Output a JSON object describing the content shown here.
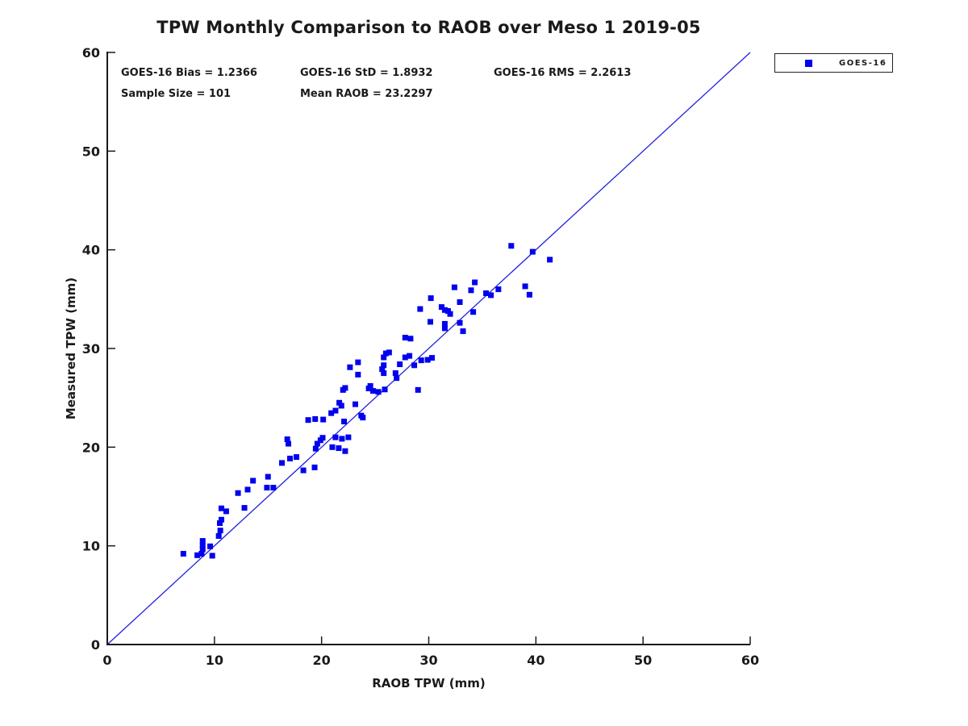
{
  "chart_data": {
    "type": "scatter",
    "title": "TPW Monthly Comparison to RAOB over Meso 1 2019-05",
    "xlabel": "RAOB TPW (mm)",
    "ylabel": "Measured TPW (mm)",
    "xlim": [
      0,
      60
    ],
    "ylim": [
      0,
      60
    ],
    "xticks": [
      0,
      10,
      20,
      30,
      40,
      50,
      60
    ],
    "yticks": [
      0,
      10,
      20,
      30,
      40,
      50,
      60
    ],
    "grid": false,
    "stats_annotations": [
      "GOES-16 Bias = 1.2366",
      "GOES-16 StD = 1.8932",
      "GOES-16 RMS = 2.2613",
      "Sample Size = 101",
      "Mean RAOB = 23.2297"
    ],
    "legend": {
      "position": "outside-top-right",
      "entries": [
        {
          "label": "GOES-16",
          "marker": "square",
          "color": "#0000EE"
        }
      ]
    },
    "reference_line": {
      "type": "identity",
      "x": [
        0,
        60
      ],
      "y": [
        0,
        60
      ],
      "color": "#2222DD"
    },
    "series": [
      {
        "name": "GOES-16",
        "marker": "square",
        "marker_size": 7,
        "color": "#0000EE",
        "points": [
          [
            7.1,
            9.2
          ],
          [
            8.4,
            9.05
          ],
          [
            8.8,
            9.2
          ],
          [
            8.9,
            9.65
          ],
          [
            8.9,
            10.05
          ],
          [
            8.9,
            10.5
          ],
          [
            9.6,
            9.95
          ],
          [
            9.8,
            9.0
          ],
          [
            10.4,
            11.0
          ],
          [
            10.55,
            11.55
          ],
          [
            10.5,
            12.3
          ],
          [
            10.65,
            12.65
          ],
          [
            10.65,
            13.8
          ],
          [
            11.1,
            13.5
          ],
          [
            12.2,
            15.35
          ],
          [
            12.8,
            13.85
          ],
          [
            13.1,
            15.7
          ],
          [
            13.6,
            16.6
          ],
          [
            14.9,
            15.9
          ],
          [
            15.0,
            17.0
          ],
          [
            15.5,
            15.9
          ],
          [
            16.3,
            18.4
          ],
          [
            16.8,
            20.8
          ],
          [
            16.9,
            20.35
          ],
          [
            17.05,
            18.85
          ],
          [
            17.65,
            19.0
          ],
          [
            18.3,
            17.65
          ],
          [
            19.35,
            17.95
          ],
          [
            19.45,
            19.85
          ],
          [
            19.6,
            20.35
          ],
          [
            19.9,
            20.7
          ],
          [
            20.1,
            20.95
          ],
          [
            18.75,
            22.75
          ],
          [
            19.4,
            22.85
          ],
          [
            20.15,
            22.8
          ],
          [
            20.9,
            23.45
          ],
          [
            21.3,
            23.7
          ],
          [
            21.0,
            20.0
          ],
          [
            21.3,
            21.0
          ],
          [
            21.9,
            20.85
          ],
          [
            22.5,
            21.0
          ],
          [
            21.6,
            19.9
          ],
          [
            22.2,
            19.6
          ],
          [
            21.65,
            24.5
          ],
          [
            21.85,
            24.2
          ],
          [
            22.1,
            22.6
          ],
          [
            23.15,
            24.35
          ],
          [
            23.7,
            23.2
          ],
          [
            22.0,
            25.8
          ],
          [
            22.2,
            26.0
          ],
          [
            22.65,
            28.1
          ],
          [
            23.4,
            28.6
          ],
          [
            23.4,
            27.35
          ],
          [
            23.85,
            23.0
          ],
          [
            24.4,
            25.95
          ],
          [
            24.55,
            26.2
          ],
          [
            24.8,
            25.7
          ],
          [
            25.3,
            25.6
          ],
          [
            25.9,
            25.85
          ],
          [
            25.65,
            27.9
          ],
          [
            25.8,
            27.5
          ],
          [
            25.8,
            28.3
          ],
          [
            25.8,
            29.1
          ],
          [
            26.0,
            29.5
          ],
          [
            26.3,
            29.6
          ],
          [
            26.9,
            27.5
          ],
          [
            27.0,
            27.0
          ],
          [
            27.3,
            28.4
          ],
          [
            27.8,
            29.1
          ],
          [
            28.2,
            29.25
          ],
          [
            28.65,
            28.3
          ],
          [
            29.3,
            28.8
          ],
          [
            29.9,
            28.85
          ],
          [
            30.3,
            29.05
          ],
          [
            29.0,
            25.8
          ],
          [
            27.8,
            31.1
          ],
          [
            28.3,
            31.0
          ],
          [
            29.2,
            34.0
          ],
          [
            30.2,
            35.1
          ],
          [
            30.15,
            32.7
          ],
          [
            31.2,
            34.2
          ],
          [
            31.5,
            33.9
          ],
          [
            31.8,
            33.8
          ],
          [
            32.0,
            33.5
          ],
          [
            31.5,
            32.5
          ],
          [
            31.5,
            32.05
          ],
          [
            32.9,
            32.6
          ],
          [
            33.2,
            31.75
          ],
          [
            32.4,
            36.2
          ],
          [
            32.9,
            34.7
          ],
          [
            33.95,
            35.9
          ],
          [
            34.3,
            36.7
          ],
          [
            34.15,
            33.7
          ],
          [
            35.35,
            35.6
          ],
          [
            35.8,
            35.4
          ],
          [
            36.5,
            36.0
          ],
          [
            39.0,
            36.3
          ],
          [
            39.4,
            35.45
          ],
          [
            37.7,
            40.4
          ],
          [
            39.7,
            39.8
          ],
          [
            41.3,
            39.0
          ]
        ]
      }
    ]
  },
  "colors": {
    "marker": "#0000EE",
    "reference_line": "#2222DD",
    "axis": "#1a1a1a",
    "text": "#1a1a1a"
  }
}
